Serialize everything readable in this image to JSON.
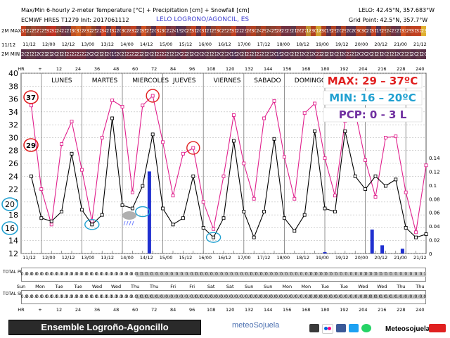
{
  "header": {
    "title": "Max/Min 6-hourly 2-meter Temperature [°C] + Precipitation [cm] + Snowfall [cm]",
    "model": "ECMWF HRES T1279  Init: 2017061112",
    "location": "LELO LOGRONO/AGONCIL, ES",
    "lelo": "LELO: 42.45°N, 357.683°W",
    "grid": "Grid Point: 42.5°N, 357.7°W"
  },
  "strips": {
    "max_label": "2M MAX",
    "min_label": "2M MIN",
    "date_start": "11/12",
    "max_values": [
      "35",
      "22",
      "25",
      "27",
      "25",
      "32",
      "32",
      "24",
      "22",
      "21",
      "30",
      "33",
      "28",
      "32",
      "25",
      "22",
      "34",
      "21",
      "32",
      "20",
      "30",
      "28",
      "32",
      "21",
      "35",
      "25",
      "20",
      "32",
      "30",
      "22",
      "24",
      "19",
      "20",
      "25",
      "31",
      "20",
      "31",
      "21",
      "25",
      "30",
      "25",
      "25",
      "31",
      "22",
      "23",
      "26",
      "30",
      "24",
      "29",
      "24",
      "25",
      "28",
      "23",
      "23",
      "21",
      "26",
      "27",
      "18",
      "30",
      "18",
      "30",
      "19",
      "29",
      "20",
      "29",
      "20",
      "20",
      "30",
      "30",
      "21",
      "31",
      "19",
      "29",
      "24",
      "23",
      "21",
      "33",
      "29",
      "31",
      "32",
      "23"
    ],
    "min_values": [
      "20",
      "21",
      "21",
      "20",
      "21",
      "21",
      "20",
      "21",
      "21",
      "22",
      "22",
      "22",
      "22",
      "20",
      "20",
      "21",
      "21",
      "20",
      "19",
      "20",
      "21",
      "22",
      "22",
      "22",
      "21",
      "20",
      "21",
      "22",
      "22",
      "21",
      "21",
      "20",
      "22",
      "21",
      "20",
      "20",
      "20",
      "21",
      "21",
      "20",
      "21",
      "20",
      "19",
      "20",
      "21",
      "22",
      "21",
      "22",
      "21",
      "21",
      "20",
      "19",
      "20",
      "20",
      "21",
      "21",
      "20",
      "21",
      "20",
      "22",
      "21",
      "21",
      "20",
      "21",
      "20",
      "22",
      "21",
      "20",
      "20",
      "20",
      "21",
      "21",
      "20",
      "21",
      "21",
      "20",
      "21",
      "21",
      "20",
      "21",
      "20"
    ],
    "max_colors": [
      "#c04020",
      "#80402c",
      "#a04a34",
      "#a04030",
      "#904030",
      "#b03020",
      "#c03020",
      "#804030",
      "#703040",
      "#603848",
      "#c05020",
      "#d06020",
      "#a04020",
      "#c05020",
      "#904028",
      "#703040",
      "#d04020",
      "#603848",
      "#c04020",
      "#5a3048",
      "#b04020",
      "#a04030",
      "#c04020",
      "#603848",
      "#d05020",
      "#904030",
      "#5a3048",
      "#c04020",
      "#b04020",
      "#703040",
      "#803840",
      "#503050",
      "#5a3048",
      "#904030",
      "#c04020",
      "#5a3048",
      "#c04020",
      "#603848",
      "#904030",
      "#b04020",
      "#904030",
      "#904030",
      "#c04020",
      "#703040",
      "#703040",
      "#a04030",
      "#b04020",
      "#804030",
      "#b04020",
      "#804030",
      "#904030",
      "#a04030",
      "#703040",
      "#703040",
      "#603848",
      "#a04030",
      "#a04030",
      "#c09030",
      "#b04020",
      "#d0a030",
      "#b04020",
      "#5a3048",
      "#b04020",
      "#5a3048",
      "#b04020",
      "#5a3048",
      "#5a3048",
      "#b04020",
      "#b04020",
      "#603848",
      "#c04020",
      "#503050",
      "#b04020",
      "#804030",
      "#703040",
      "#603848",
      "#d05020",
      "#b04020",
      "#c04020",
      "#c04020",
      "#e0b030"
    ],
    "min_colors": [
      "#5a3048",
      "#603848",
      "#603848",
      "#5a3048",
      "#603848",
      "#603848",
      "#5a3048",
      "#603848",
      "#603848",
      "#703040",
      "#703040",
      "#703040",
      "#703040",
      "#5a3048",
      "#5a3048",
      "#603848",
      "#603848",
      "#5a3048",
      "#503050",
      "#5a3048",
      "#603848",
      "#703040",
      "#703040",
      "#703040",
      "#603848",
      "#5a3048",
      "#603848",
      "#703040",
      "#703040",
      "#603848",
      "#603848",
      "#5a3048",
      "#703040",
      "#603848",
      "#5a3048",
      "#5a3048",
      "#5a3048",
      "#603848",
      "#603848",
      "#5a3048",
      "#603848",
      "#5a3048",
      "#503050",
      "#5a3048",
      "#603848",
      "#703040",
      "#603848",
      "#703040",
      "#603848",
      "#603848",
      "#5a3048",
      "#503050",
      "#5a3048",
      "#5a3048",
      "#603848",
      "#603848",
      "#5a3048",
      "#603848",
      "#5a3048",
      "#703040",
      "#603848",
      "#603848",
      "#5a3048",
      "#603848",
      "#5a3048",
      "#703040",
      "#603848",
      "#5a3048",
      "#5a3048",
      "#5a3048",
      "#603848",
      "#603848",
      "#5a3048",
      "#603848",
      "#603848",
      "#5a3048",
      "#603848",
      "#603848",
      "#5a3048",
      "#603848",
      "#5a3048"
    ]
  },
  "date_ticks": [
    "11/12",
    "12/00",
    "12/12",
    "13/00",
    "13/12",
    "14/00",
    "14/12",
    "15/00",
    "15/12",
    "16/00",
    "16/12",
    "17/00",
    "17/12",
    "18/00",
    "18/12",
    "19/00",
    "19/12",
    "20/00",
    "20/12",
    "21/00",
    "21/12"
  ],
  "hr_ticks": [
    "HR",
    "+",
    "12",
    "24",
    "36",
    "48",
    "60",
    "72",
    "84",
    "96",
    "108",
    "120",
    "132",
    "144",
    "156",
    "168",
    "180",
    "192",
    "204",
    "216",
    "228",
    "240"
  ],
  "day_names": [
    "Sun",
    "Mon",
    "Tue",
    "Tue",
    "Wed",
    "Wed",
    "Thu",
    "Thu",
    "Fri",
    "Fri",
    "Sat",
    "Sat",
    "Sun",
    "Sun",
    "Mon",
    "Mon",
    "Tue",
    "Tue",
    "Wed",
    "Wed",
    "Thu",
    "Thu"
  ],
  "weekdays": [
    "LUNES",
    "MARTES",
    "MIERCOLES",
    "JUEVES",
    "VIERNES",
    "SABADO",
    "DOMINGO"
  ],
  "annotations": {
    "max": "MAX: 29 – 37ºC",
    "min": "MIN: 16 – 20ºC",
    "pcp": "PCP: 0 - 3 L",
    "max_color": "#e02020",
    "min_color": "#20a0d0",
    "pcp_color": "#7030a0",
    "circled": [
      "37",
      "29",
      "20",
      "16"
    ]
  },
  "panels": {
    "precip_label": "TOTAL PRECIP",
    "snow_label": "TOTAL SNOW",
    "precip_values": [
      "0.0",
      "0.0",
      "0.0",
      "0.0",
      "0.0",
      "0.0",
      "0.0",
      "0.0",
      "0.0",
      "0.0",
      "0.0",
      "0.0",
      "0.0",
      "0.0",
      "0.0",
      "0.0",
      "0.0",
      "0.0",
      "0.0",
      "0.0",
      "0.0",
      "0.0",
      "0.0",
      "0.1",
      "0.1",
      "0.1",
      "0.1",
      "0.1",
      "0.1",
      "0.1",
      "0.1",
      "0.1",
      "0.1",
      "0.1",
      "0.1",
      "0.1",
      "0.1",
      "0.1",
      "0.1",
      "0.1",
      "0.1",
      "0.1",
      "0.1",
      "0.1",
      "0.1",
      "0.1",
      "0.1",
      "0.1",
      "0.1",
      "0.1",
      "0.1",
      "0.1",
      "0.1",
      "0.1",
      "0.1",
      "0.1",
      "0.1",
      "0.1",
      "0.1",
      "0.1",
      "0.1",
      "0.1",
      "0.1",
      "0.1",
      "0.1",
      "0.1",
      "0.1",
      "0.1",
      "0.1",
      "0.1",
      "0.1",
      "0.1",
      "0.1",
      "0.1",
      "0.1",
      "0.1",
      "0.1",
      "0.1",
      "0.1",
      "0.1",
      "0.1"
    ],
    "snow_values": [
      "0.0",
      "0.0",
      "0.0",
      "0.0",
      "0.0",
      "0.0",
      "0.0",
      "0.0",
      "0.0",
      "0.0",
      "0.0",
      "0.0",
      "0.0",
      "0.0",
      "0.0",
      "0.0",
      "0.0",
      "0.0",
      "0.0",
      "0.0",
      "0.0",
      "0.0",
      "0.0",
      "0.0",
      "0.0",
      "0.0",
      "0.0",
      "0.0",
      "0.0",
      "0.0",
      "0.0",
      "0.0",
      "0.0",
      "0.0",
      "0.0",
      "0.0",
      "0.0",
      "0.0",
      "0.0",
      "0.0",
      "0.0",
      "0.0",
      "0.0",
      "0.0",
      "0.0",
      "0.0",
      "0.0",
      "0.0",
      "0.0",
      "0.0",
      "0.0",
      "0.0",
      "0.0",
      "0.0",
      "0.0",
      "0.0",
      "0.0",
      "0.0",
      "0.0",
      "0.0",
      "0.0",
      "0.0",
      "0.0",
      "0.0",
      "0.0",
      "0.0",
      "0.0",
      "0.0",
      "0.0",
      "0.0",
      "0.0",
      "0.0",
      "0.0",
      "0.0",
      "0.0",
      "0.0",
      "0.0",
      "0.0",
      "0.0",
      "0.0",
      "0.0"
    ]
  },
  "footer": {
    "ensemble": "Ensemble Logroño-Agoncillo",
    "brand": "meteoSojuela",
    "brand_social": "Meteosojuela",
    "icons": [
      "instagram-icon",
      "flickr-icon",
      "facebook-icon",
      "twitter-icon",
      "whatsapp-icon",
      "youtube-icon"
    ]
  },
  "chart_data": {
    "type": "line",
    "ylim": [
      12,
      40
    ],
    "y2lim": [
      0,
      0.14
    ],
    "y_ticks": [
      12,
      14,
      16,
      18,
      20,
      22,
      24,
      26,
      28,
      30,
      32,
      34,
      36,
      38,
      40
    ],
    "y2_ticks": [
      "0",
      "0.02",
      "0.04",
      "0.06",
      "0.08",
      "0.1",
      "0.12",
      "0.14"
    ],
    "x_hours": [
      0,
      240
    ],
    "series": [
      {
        "color": "#e0208c",
        "points": [
          [
            6,
            35
          ],
          [
            12,
            22
          ],
          [
            18,
            16.5
          ],
          [
            24,
            29
          ],
          [
            30,
            32.5
          ],
          [
            36,
            25
          ],
          [
            42,
            17
          ],
          [
            48,
            30
          ],
          [
            54,
            35.8
          ],
          [
            60,
            34.8
          ],
          [
            66,
            21.5
          ],
          [
            72,
            35
          ],
          [
            78,
            36.5
          ],
          [
            84,
            29.3
          ],
          [
            90,
            21
          ],
          [
            96,
            27.5
          ],
          [
            102,
            28.4
          ],
          [
            108,
            20
          ],
          [
            114,
            15.8
          ],
          [
            120,
            24
          ],
          [
            126,
            33.5
          ],
          [
            132,
            26
          ],
          [
            138,
            20.5
          ],
          [
            144,
            33
          ],
          [
            150,
            35.7
          ],
          [
            156,
            27
          ],
          [
            162,
            20.5
          ],
          [
            168,
            33.8
          ],
          [
            174,
            35.3
          ],
          [
            180,
            26.8
          ],
          [
            186,
            21
          ],
          [
            192,
            32.6
          ],
          [
            198,
            34
          ],
          [
            204,
            26.5
          ],
          [
            210,
            20.8
          ],
          [
            216,
            30
          ],
          [
            222,
            30.2
          ],
          [
            228,
            21.5
          ],
          [
            234,
            15.3
          ],
          [
            240,
            25.7
          ]
        ]
      },
      {
        "color": "#000000",
        "points": [
          [
            6,
            24
          ],
          [
            12,
            17.5
          ],
          [
            18,
            17
          ],
          [
            24,
            18.5
          ],
          [
            30,
            27.5
          ],
          [
            36,
            18.8
          ],
          [
            42,
            16.5
          ],
          [
            48,
            18
          ],
          [
            54,
            33
          ],
          [
            60,
            19.5
          ],
          [
            66,
            19
          ],
          [
            72,
            22.5
          ],
          [
            78,
            30.5
          ],
          [
            84,
            19
          ],
          [
            90,
            16.5
          ],
          [
            96,
            17.5
          ],
          [
            102,
            24
          ],
          [
            108,
            16
          ],
          [
            114,
            14.5
          ],
          [
            120,
            17.5
          ],
          [
            126,
            29.5
          ],
          [
            132,
            18.5
          ],
          [
            138,
            14.5
          ],
          [
            144,
            18.5
          ],
          [
            150,
            29.8
          ],
          [
            156,
            17.5
          ],
          [
            162,
            15.5
          ],
          [
            168,
            18
          ],
          [
            174,
            31
          ],
          [
            180,
            19
          ],
          [
            186,
            18.5
          ],
          [
            192,
            31
          ],
          [
            198,
            24
          ],
          [
            204,
            22
          ],
          [
            210,
            24
          ],
          [
            216,
            22.5
          ],
          [
            222,
            23.5
          ],
          [
            228,
            16
          ],
          [
            234,
            14.5
          ],
          [
            240,
            15
          ]
        ]
      }
    ],
    "precip_bars": [
      [
        76,
        0.12
      ],
      [
        180,
        0.002
      ],
      [
        208,
        0.035
      ],
      [
        214,
        0.012
      ],
      [
        226,
        0.007
      ]
    ]
  }
}
